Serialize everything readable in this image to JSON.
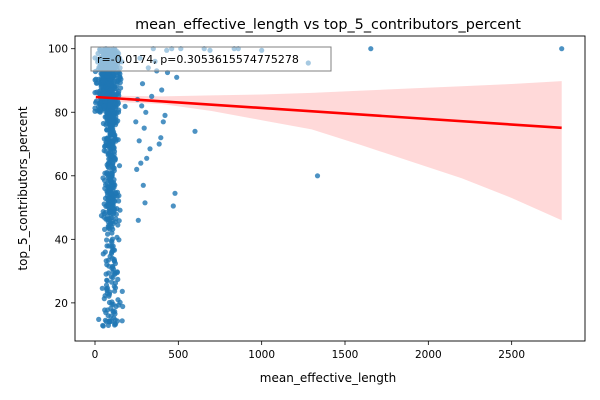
{
  "chart_data": {
    "type": "scatter",
    "title": "mean_effective_length vs top_5_contributors_percent",
    "xlabel": "mean_effective_length",
    "ylabel": "top_5_contributors_percent",
    "xlim": [
      -120,
      2940
    ],
    "ylim": [
      8,
      104
    ],
    "xticks": [
      0,
      500,
      1000,
      1500,
      2000,
      2500
    ],
    "yticks": [
      20,
      40,
      60,
      80,
      100
    ],
    "xtick_labels": [
      "0",
      "500",
      "1000",
      "1500",
      "2000",
      "2500"
    ],
    "ytick_labels": [
      "20",
      "40",
      "60",
      "80",
      "100"
    ],
    "grid": false,
    "annotation": "r=-0.0174, p=0.3053615574775278",
    "annotation_position": "top-left",
    "colors": {
      "points": "#1f77b4",
      "regression": "#ff0000",
      "ci_band": "#ffcccc"
    },
    "regression": {
      "x": [
        5,
        2800
      ],
      "y": [
        84.8,
        75.1
      ]
    },
    "confidence_band": {
      "x": [
        5,
        150,
        400,
        700,
        1000,
        1300,
        1600,
        1900,
        2200,
        2500,
        2800
      ],
      "upper": [
        86.0,
        85.2,
        85.0,
        85.3,
        85.6,
        86.1,
        86.8,
        87.5,
        88.2,
        88.9,
        89.8
      ],
      "lower": [
        83.6,
        83.2,
        82.6,
        80.4,
        77.5,
        74.6,
        69.6,
        64.4,
        59.2,
        53.0,
        46.0
      ]
    },
    "cluster": {
      "x_range": [
        0,
        240
      ],
      "y_range": [
        12.5,
        100
      ],
      "approx_points": 900
    },
    "outliers": [
      {
        "x": 2800,
        "y": 100
      },
      {
        "x": 1655,
        "y": 100
      },
      {
        "x": 1335,
        "y": 60
      },
      {
        "x": 1280,
        "y": 95.5
      },
      {
        "x": 1000,
        "y": 99.5
      },
      {
        "x": 860,
        "y": 100
      },
      {
        "x": 835,
        "y": 100
      },
      {
        "x": 690,
        "y": 99.5
      },
      {
        "x": 655,
        "y": 100
      },
      {
        "x": 600,
        "y": 74
      },
      {
        "x": 515,
        "y": 100
      },
      {
        "x": 490,
        "y": 91
      },
      {
        "x": 480,
        "y": 54.5
      },
      {
        "x": 470,
        "y": 50.5
      },
      {
        "x": 460,
        "y": 100
      },
      {
        "x": 435,
        "y": 92.5
      },
      {
        "x": 430,
        "y": 99.5
      },
      {
        "x": 420,
        "y": 79
      },
      {
        "x": 410,
        "y": 77
      },
      {
        "x": 400,
        "y": 87
      },
      {
        "x": 395,
        "y": 72
      },
      {
        "x": 385,
        "y": 70
      },
      {
        "x": 370,
        "y": 93
      },
      {
        "x": 360,
        "y": 96
      },
      {
        "x": 350,
        "y": 100
      },
      {
        "x": 340,
        "y": 85
      },
      {
        "x": 330,
        "y": 68.5
      },
      {
        "x": 320,
        "y": 94
      },
      {
        "x": 310,
        "y": 65.5
      },
      {
        "x": 305,
        "y": 80
      },
      {
        "x": 300,
        "y": 51.5
      },
      {
        "x": 295,
        "y": 75
      },
      {
        "x": 290,
        "y": 57
      },
      {
        "x": 285,
        "y": 89
      },
      {
        "x": 280,
        "y": 82
      },
      {
        "x": 275,
        "y": 64
      },
      {
        "x": 270,
        "y": 97
      },
      {
        "x": 265,
        "y": 71
      },
      {
        "x": 260,
        "y": 46
      },
      {
        "x": 255,
        "y": 84
      },
      {
        "x": 250,
        "y": 62
      },
      {
        "x": 245,
        "y": 77
      }
    ]
  }
}
